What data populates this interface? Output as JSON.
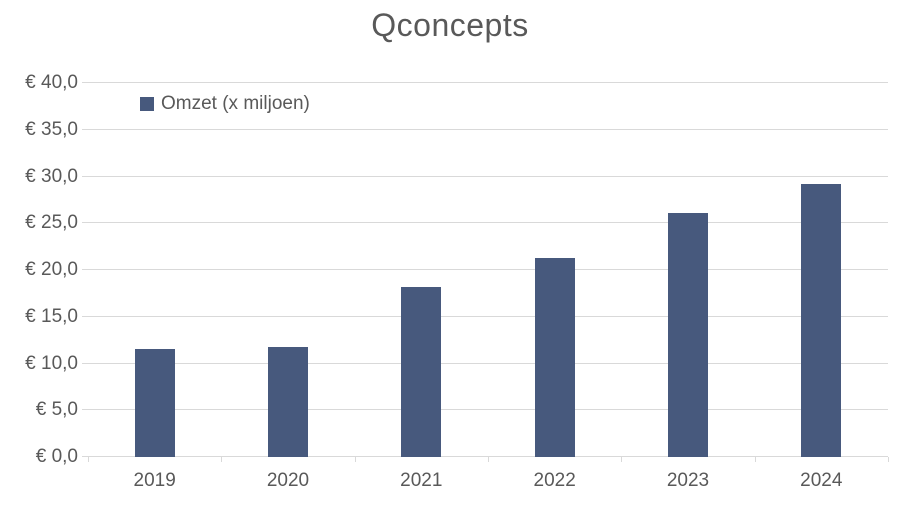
{
  "title": "Qconcepts",
  "legend": {
    "label": "Omzet (x miljoen)",
    "position": "top-left-inside"
  },
  "colors": {
    "bar": "#47597D",
    "grid": "#D9D9D9",
    "text": "#595959",
    "background": "#FFFFFF"
  },
  "chart_data": {
    "type": "bar",
    "title": "Qconcepts",
    "categories": [
      "2019",
      "2020",
      "2021",
      "2022",
      "2023",
      "2024"
    ],
    "series": [
      {
        "name": "Omzet (x miljoen)",
        "values": [
          11.5,
          11.8,
          18.2,
          21.3,
          26.1,
          29.2
        ]
      }
    ],
    "xlabel": "",
    "ylabel": "",
    "ylim": [
      0,
      40
    ],
    "ytick_step": 5,
    "yticks": [
      {
        "value": 0,
        "label": "€ 0,0"
      },
      {
        "value": 5,
        "label": "€ 5,0"
      },
      {
        "value": 10,
        "label": "€ 10,0"
      },
      {
        "value": 15,
        "label": "€ 15,0"
      },
      {
        "value": 20,
        "label": "€ 20,0"
      },
      {
        "value": 25,
        "label": "€ 25,0"
      },
      {
        "value": 30,
        "label": "€ 30,0"
      },
      {
        "value": 35,
        "label": "€ 35,0"
      },
      {
        "value": 40,
        "label": "€ 40,0"
      }
    ],
    "grid": true,
    "legend_position": "top-left-inside"
  }
}
